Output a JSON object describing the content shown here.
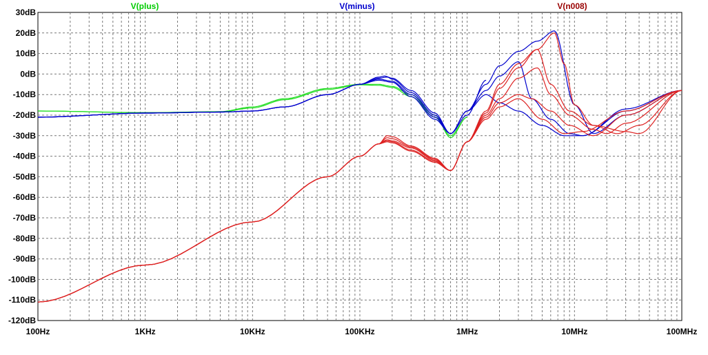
{
  "chart_data": {
    "type": "line",
    "x_scale": "log",
    "grid": true,
    "xlim": [
      "100Hz",
      "100MHz"
    ],
    "ylim": [
      -120,
      30
    ],
    "x_ticks": [
      "100Hz",
      "1KHz",
      "10KHz",
      "100KHz",
      "1MHz",
      "10MHz",
      "100MHz"
    ],
    "y_ticks": [
      "30dB",
      "20dB",
      "10dB",
      "0dB",
      "-10dB",
      "-20dB",
      "-30dB",
      "-40dB",
      "-50dB",
      "-60dB",
      "-70dB",
      "-80dB",
      "-90dB",
      "-100dB",
      "-110dB",
      "-120dB"
    ],
    "legend": [
      {
        "label": "V(plus)",
        "color": "#00cc00"
      },
      {
        "label": "V(minus)",
        "color": "#0000cc"
      },
      {
        "label": "V(n008)",
        "color": "#990000"
      }
    ],
    "series": [
      {
        "name": "V(plus)",
        "color": "#22dd22",
        "x": [
          100,
          1000,
          5000,
          10000,
          20000,
          50000,
          100000,
          150000,
          200000,
          300000,
          500000,
          700000,
          1000000
        ],
        "y": [
          -18,
          -18.8,
          -18.3,
          -16,
          -12,
          -7,
          -5,
          -5,
          -6,
          -10,
          -20,
          -31,
          -21
        ]
      },
      {
        "name": "V(plus)",
        "color": "#22dd22",
        "x": [
          100,
          1000,
          5000,
          10000,
          20000,
          50000,
          100000,
          150000,
          200000,
          300000,
          500000,
          700000,
          1000000
        ],
        "y": [
          -18,
          -18.8,
          -18.4,
          -16.5,
          -12.5,
          -7.5,
          -5.3,
          -5.5,
          -6.5,
          -11,
          -21,
          -30,
          -21
        ]
      },
      {
        "name": "V(minus)",
        "color": "#0000cc",
        "x": [
          100,
          1000,
          5000,
          10000,
          20000,
          50000,
          100000,
          150000,
          170000,
          200000,
          300000,
          500000,
          700000,
          1000000,
          1500000
        ],
        "y": [
          -21,
          -19,
          -18.5,
          -18,
          -16,
          -10,
          -5,
          -1.5,
          -1,
          -2,
          -8,
          -19,
          -29,
          -20,
          -3
        ]
      },
      {
        "name": "V(minus)",
        "color": "#0000cc",
        "x": [
          100,
          1000,
          5000,
          10000,
          20000,
          50000,
          100000,
          150000,
          180000,
          200000,
          300000,
          500000,
          700000,
          1000000,
          1500000,
          2000000,
          3000000,
          4500000,
          6500000,
          10000000,
          15000000,
          30000000,
          100000000
        ],
        "y": [
          -21,
          -19,
          -18.5,
          -18,
          -16,
          -10,
          -5,
          -2,
          -1.5,
          -2.5,
          -9,
          -20,
          -29,
          -18,
          -5,
          4,
          11,
          16,
          21,
          -15,
          -29,
          -20,
          -8
        ]
      },
      {
        "name": "V(minus)",
        "color": "#0000cc",
        "x": [
          100,
          1000,
          5000,
          10000,
          20000,
          50000,
          100000,
          150000,
          200000,
          300000,
          500000,
          700000,
          1000000,
          1500000,
          2000000,
          3000000,
          4000000,
          6000000,
          9000000,
          12000000,
          30000000,
          100000000
        ],
        "y": [
          -21,
          -19,
          -18.5,
          -18,
          -16,
          -10,
          -5,
          -2.5,
          -3.5,
          -10,
          -21,
          -29,
          -18,
          -8,
          -1,
          6,
          -12,
          -22,
          -29,
          -30,
          -18,
          -8
        ]
      },
      {
        "name": "V(minus)",
        "color": "#0000cc",
        "x": [
          100,
          1000,
          5000,
          10000,
          20000,
          50000,
          100000,
          150000,
          200000,
          300000,
          500000,
          700000,
          1000000,
          1500000,
          2000000,
          3000000,
          5000000,
          8000000,
          12000000,
          30000000,
          100000000
        ],
        "y": [
          -21,
          -19,
          -18.5,
          -18,
          -16,
          -10,
          -5,
          -3,
          -4,
          -11,
          -22,
          -29,
          -18,
          -10,
          -14,
          -18,
          -25,
          -30,
          -30,
          -17,
          -8
        ]
      },
      {
        "name": "V(n008)",
        "color": "#dd2222",
        "x": [
          100,
          1000,
          10000,
          50000,
          100000,
          150000,
          180000,
          200000,
          300000,
          500000,
          700000,
          1000000,
          1500000,
          2000000,
          3000000,
          4500000,
          6500000,
          8000000,
          10000000,
          15000000,
          25000000,
          40000000,
          100000000
        ],
        "y": [
          -111,
          -93,
          -72,
          -50,
          -40,
          -34,
          -30,
          -30.5,
          -35,
          -41,
          -47,
          -33,
          -18,
          -5,
          5,
          12,
          20,
          5,
          -15,
          -25,
          -29,
          -25,
          -8
        ]
      },
      {
        "name": "V(n008)",
        "color": "#dd2222",
        "x": [
          100,
          1000,
          10000,
          50000,
          100000,
          150000,
          180000,
          200000,
          300000,
          500000,
          700000,
          1000000,
          1500000,
          2000000,
          3000000,
          4500000,
          6000000,
          9000000,
          15000000,
          30000000,
          40000000,
          100000000
        ],
        "y": [
          -111,
          -93,
          -72,
          -50,
          -40,
          -34,
          -31,
          -31.5,
          -35.5,
          -41.5,
          -47,
          -33,
          -19,
          -7,
          3,
          12,
          -5,
          -18,
          -25,
          -28,
          -29,
          -8
        ]
      },
      {
        "name": "V(n008)",
        "color": "#dd2222",
        "x": [
          100,
          1000,
          10000,
          50000,
          100000,
          150000,
          180000,
          200000,
          300000,
          500000,
          700000,
          1000000,
          1500000,
          2000000,
          3000000,
          4500000,
          6000000,
          9000000,
          15000000,
          20000000,
          30000000,
          100000000
        ],
        "y": [
          -111,
          -93,
          -72,
          -50,
          -40,
          -34,
          -32,
          -32.5,
          -36,
          -42,
          -47,
          -33,
          -20,
          -12,
          -2,
          3,
          -10,
          -20,
          -27,
          -29,
          -24,
          -8
        ]
      },
      {
        "name": "V(n008)",
        "color": "#dd2222",
        "x": [
          100,
          1000,
          10000,
          50000,
          100000,
          150000,
          180000,
          200000,
          300000,
          500000,
          700000,
          1000000,
          1500000,
          2000000,
          3000000,
          4000000,
          6000000,
          9000000,
          15000000,
          30000000,
          100000000
        ],
        "y": [
          -111,
          -93,
          -72,
          -50,
          -40,
          -34,
          -32.5,
          -33,
          -37,
          -42.5,
          -47,
          -33,
          -21,
          -14,
          -10,
          -12,
          -18,
          -25,
          -30,
          -20,
          -8
        ]
      },
      {
        "name": "V(n008)",
        "color": "#dd2222",
        "x": [
          100,
          1000,
          10000,
          50000,
          100000,
          150000,
          180000,
          200000,
          300000,
          500000,
          700000,
          1000000,
          1500000,
          2000000,
          3000000,
          5000000,
          8000000,
          12000000,
          30000000,
          100000000
        ],
        "y": [
          -111,
          -93,
          -72,
          -50,
          -40,
          -34,
          -33,
          -33.5,
          -37.5,
          -43,
          -47,
          -33,
          -22,
          -16,
          -12,
          -22,
          -29,
          -28,
          -18,
          -8
        ]
      }
    ]
  }
}
